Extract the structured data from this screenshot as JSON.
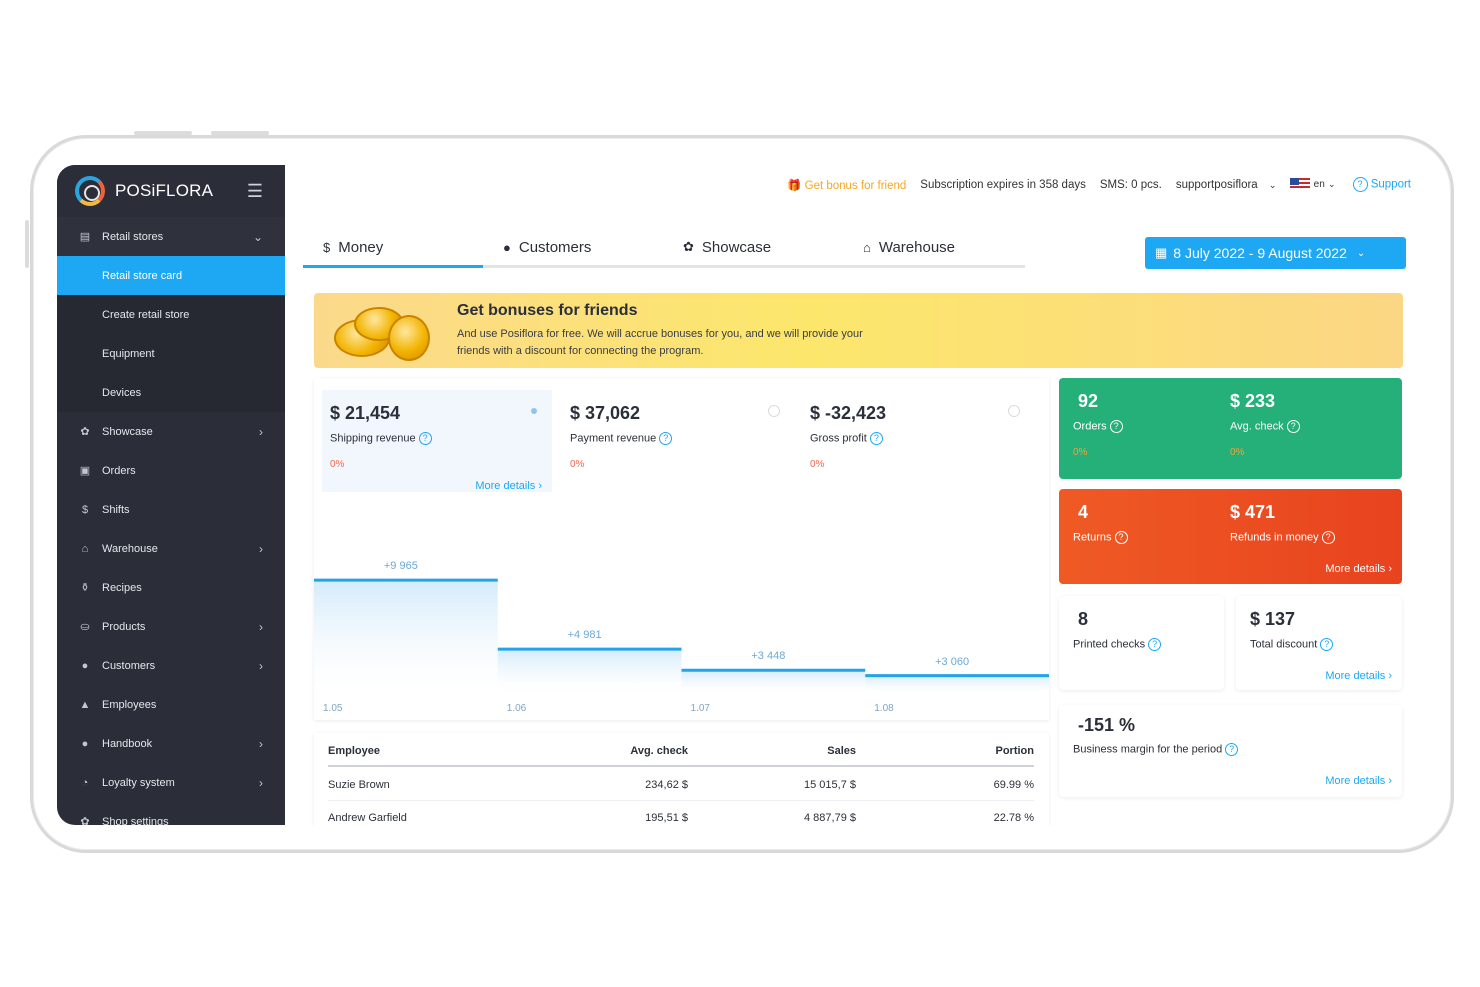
{
  "brand": {
    "name": "POSiFLORA"
  },
  "sidebar": {
    "items": [
      {
        "icon": "store-icon",
        "label": "Retail stores",
        "expanded": true
      },
      {
        "label": "Retail store card",
        "sub": true,
        "active": true
      },
      {
        "label": "Create retail store",
        "sub": true
      },
      {
        "label": "Equipment",
        "sub": true
      },
      {
        "label": "Devices",
        "sub": true
      },
      {
        "icon": "flower-icon",
        "label": "Showcase",
        "chevron": true
      },
      {
        "icon": "orders-icon",
        "label": "Orders"
      },
      {
        "icon": "dollar-icon",
        "label": "Shifts"
      },
      {
        "icon": "bank-icon",
        "label": "Warehouse",
        "chevron": true
      },
      {
        "icon": "recipe-icon",
        "label": "Recipes"
      },
      {
        "icon": "basket-icon",
        "label": "Products",
        "chevron": true
      },
      {
        "icon": "customer-icon",
        "label": "Customers",
        "chevron": true
      },
      {
        "icon": "employee-icon",
        "label": "Employees"
      },
      {
        "icon": "handbook-icon",
        "label": "Handbook",
        "chevron": true
      },
      {
        "icon": "loyalty-icon",
        "label": "Loyalty system",
        "chevron": true
      },
      {
        "icon": "settings-icon",
        "label": "Shop settings"
      }
    ]
  },
  "topbar": {
    "bonus": "Get bonus for friend",
    "subscription": "Subscription expires in 358 days",
    "sms": "SMS: 0 pcs.",
    "account": "supportposiflora",
    "lang": "en",
    "support": "Support"
  },
  "tabs": [
    {
      "icon": "$",
      "label": "Money",
      "active": true
    },
    {
      "icon": "●",
      "label": "Customers"
    },
    {
      "icon": "✿",
      "label": "Showcase"
    },
    {
      "icon": "⌂",
      "label": "Warehouse"
    }
  ],
  "date_range": "8 July 2022 - 9 August 2022",
  "banner": {
    "title": "Get bonuses for friends",
    "text": "And use Posiflora for free. We will accrue bonuses for you, and we will provide your friends with a discount for connecting the program."
  },
  "metrics": [
    {
      "value": "$ 21,454",
      "label": "Shipping revenue",
      "pct": "0%",
      "more": "More details",
      "selected": true
    },
    {
      "value": "$ 37,062",
      "label": "Payment revenue",
      "pct": "0%"
    },
    {
      "value": "$ -32,423",
      "label": "Gross profit",
      "pct": "0%"
    }
  ],
  "chart_data": {
    "type": "step",
    "categories": [
      "1.05",
      "1.06",
      "1.07",
      "1.08"
    ],
    "values": [
      9965,
      4981,
      3448,
      3060
    ],
    "labels": [
      "+9 965",
      "+4 981",
      "+3 448",
      "+3 060"
    ],
    "ylim": [
      0,
      12000
    ]
  },
  "employee_table": {
    "headers": [
      "Employee",
      "Avg. check",
      "Sales",
      "Portion"
    ],
    "rows": [
      [
        "Suzie Brown",
        "234,62 $",
        "15 015,7 $",
        "69.99 %"
      ],
      [
        "Andrew Garfield",
        "195,51 $",
        "4 887,79 $",
        "22.78 %"
      ]
    ]
  },
  "cards": {
    "orders": {
      "value": "92",
      "label": "Orders",
      "pct": "0%"
    },
    "avg_check": {
      "value": "$ 233",
      "label": "Avg. check",
      "pct": "0%"
    },
    "returns": {
      "value": "4",
      "label": "Returns"
    },
    "refunds": {
      "value": "$ 471",
      "label": "Refunds in money",
      "more": "More details"
    },
    "printed": {
      "value": "8",
      "label": "Printed checks"
    },
    "discount": {
      "value": "$ 137",
      "label": "Total discount",
      "more": "More details"
    },
    "margin": {
      "value": "-151 %",
      "label": "Business margin for the period",
      "more": "More details"
    }
  },
  "colors": {
    "accent": "#1ea7f2",
    "green": "#25b07a",
    "orange": "#ec4e22",
    "sidebar": "#2b2e38"
  }
}
